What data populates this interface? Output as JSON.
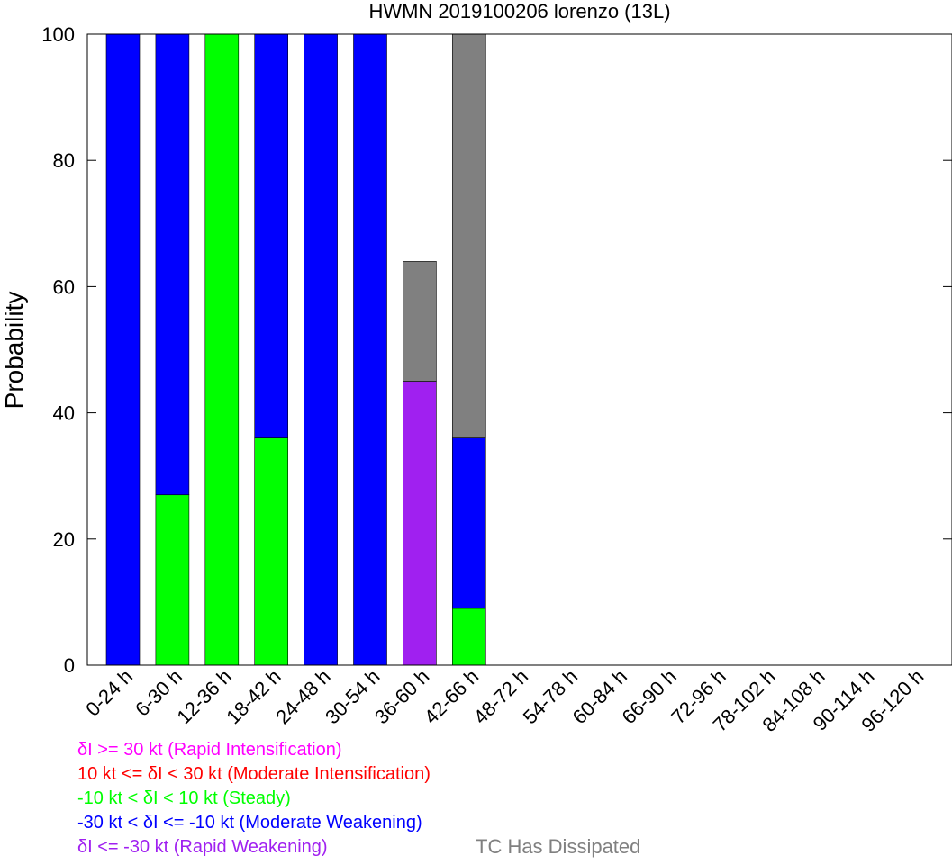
{
  "chart_data": {
    "type": "bar",
    "stacked": true,
    "title": "HWMN 2019100206 lorenzo (13L)",
    "xlabel": "",
    "ylabel": "Probability",
    "ylim": [
      0,
      100
    ],
    "yticks": [
      "0",
      "20",
      "40",
      "60",
      "80",
      "100"
    ],
    "grid": false,
    "categories": [
      "0-24 h",
      "6-30 h",
      "12-36 h",
      "18-42 h",
      "24-48 h",
      "30-54 h",
      "36-60 h",
      "42-66 h",
      "48-72 h",
      "54-78 h",
      "60-84 h",
      "66-90 h",
      "72-96 h",
      "78-102 h",
      "84-108 h",
      "90-114 h",
      "96-120 h"
    ],
    "series": [
      {
        "key": "rw",
        "color": "#a020f0",
        "values": [
          0,
          0,
          0,
          0,
          0,
          0,
          45,
          0,
          0,
          0,
          0,
          0,
          0,
          0,
          0,
          0,
          0
        ]
      },
      {
        "key": "mw",
        "color": "#0000ff",
        "values": [
          100,
          73,
          0,
          64,
          100,
          100,
          0,
          27,
          0,
          0,
          0,
          0,
          0,
          0,
          0,
          0,
          0
        ]
      },
      {
        "key": "steady",
        "color": "#00ff00",
        "values": [
          0,
          27,
          100,
          36,
          0,
          0,
          0,
          9,
          0,
          0,
          0,
          0,
          0,
          0,
          0,
          0,
          0
        ]
      },
      {
        "key": "mi",
        "color": "#ff0000",
        "values": [
          0,
          0,
          0,
          0,
          0,
          0,
          0,
          0,
          0,
          0,
          0,
          0,
          0,
          0,
          0,
          0,
          0
        ]
      },
      {
        "key": "ri",
        "color": "#ff00ff",
        "values": [
          0,
          0,
          0,
          0,
          0,
          0,
          0,
          0,
          0,
          0,
          0,
          0,
          0,
          0,
          0,
          0,
          0
        ]
      },
      {
        "key": "diss",
        "color": "#808080",
        "values": [
          0,
          0,
          0,
          0,
          0,
          0,
          19,
          64,
          0,
          0,
          0,
          0,
          0,
          0,
          0,
          0,
          0
        ]
      }
    ],
    "stack_order": [
      "steady",
      "mw",
      "rw",
      "mi",
      "ri",
      "diss"
    ]
  },
  "legend": {
    "ri": {
      "text": "δI >= 30 kt (Rapid Intensification)",
      "color": "#ff00ff"
    },
    "mi": {
      "text": "10 kt <= δI < 30 kt (Moderate Intensification)",
      "color": "#ff0000"
    },
    "steady": {
      "text": "-10 kt < δI < 10 kt (Steady)",
      "color": "#00ff00"
    },
    "mw": {
      "text": "-30 kt < δI <= -10 kt (Moderate Weakening)",
      "color": "#0000ff"
    },
    "rw": {
      "text": "δI <= -30 kt (Rapid Weakening)",
      "color": "#a020f0"
    },
    "diss": {
      "text": "TC Has Dissipated",
      "color": "#808080"
    }
  }
}
